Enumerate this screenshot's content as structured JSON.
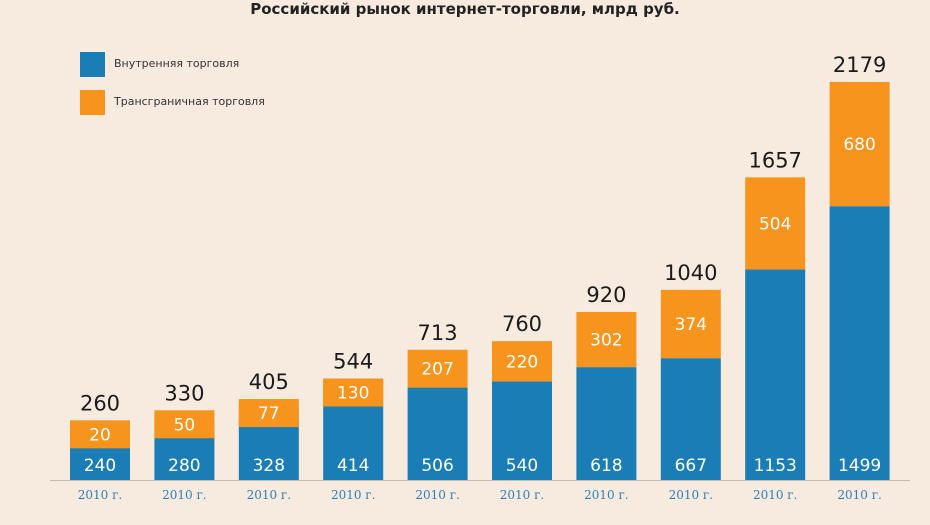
{
  "title": "Российский рынок интернет-торговли, млрд руб.",
  "colors": {
    "domestic": "#1b7db5",
    "crossborder": "#f7941d",
    "background": "#f7ebe0",
    "axis": "#c8b9aa",
    "tick": "#2e7fb6"
  },
  "legend": [
    {
      "label": "Внутренняя торговля",
      "color": "#1b7db5"
    },
    {
      "label": "Трансграничная торговля",
      "color": "#f7941d"
    }
  ],
  "chart_data": {
    "type": "bar",
    "stacked": true,
    "title": "Российский рынок интернет-торговли, млрд руб.",
    "categories": [
      "2010 г.",
      "2010 г.",
      "2010 г.",
      "2010 г.",
      "2010 г.",
      "2010 г.",
      "2010 г.",
      "2010 г.",
      "2010 г.",
      "2010 г."
    ],
    "series": [
      {
        "name": "Внутренняя торговля",
        "values": [
          240,
          280,
          328,
          414,
          506,
          540,
          618,
          667,
          1153,
          1499
        ]
      },
      {
        "name": "Трансграничная торговля",
        "values": [
          20,
          50,
          77,
          130,
          207,
          220,
          302,
          374,
          504,
          680
        ]
      }
    ],
    "totals": [
      260,
      330,
      405,
      544,
      713,
      760,
      920,
      1040,
      1657,
      2179
    ],
    "ylim": [
      0,
      2179
    ],
    "grid": false,
    "legend_position": "top-left"
  }
}
